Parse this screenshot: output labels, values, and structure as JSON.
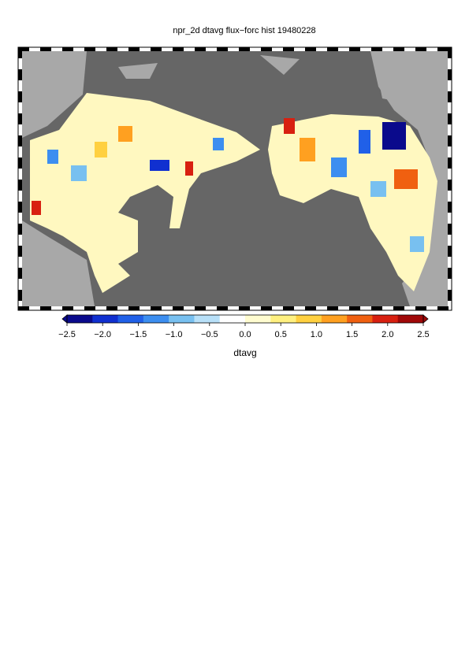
{
  "title": "npr_2d dtavg flux−forc hist 19480228",
  "colorbar": {
    "label": "dtavg",
    "lim": [
      -2.5,
      2.5
    ],
    "colors": [
      "#0a0a8c",
      "#1030d0",
      "#2060e8",
      "#3c8ef0",
      "#78c0f0",
      "#b8e0f8",
      "#ffffff",
      "#fffcd0",
      "#fff080",
      "#ffd040",
      "#ffa020",
      "#f06010",
      "#d82010",
      "#a00808"
    ],
    "ticks": [
      {
        "value": -2.5,
        "label": "−2.5"
      },
      {
        "value": -2.0,
        "label": "−2.0"
      },
      {
        "value": -1.5,
        "label": "−1.5"
      },
      {
        "value": -1.0,
        "label": "−1.0"
      },
      {
        "value": -0.5,
        "label": "−0.5"
      },
      {
        "value": 0,
        "label": "0.0"
      },
      0.5,
      {
        "value": 1.0,
        "label": "1.0"
      },
      1.5,
      {
        "value": 2.0,
        "label": "2.0"
      },
      2.5
    ]
  }
}
